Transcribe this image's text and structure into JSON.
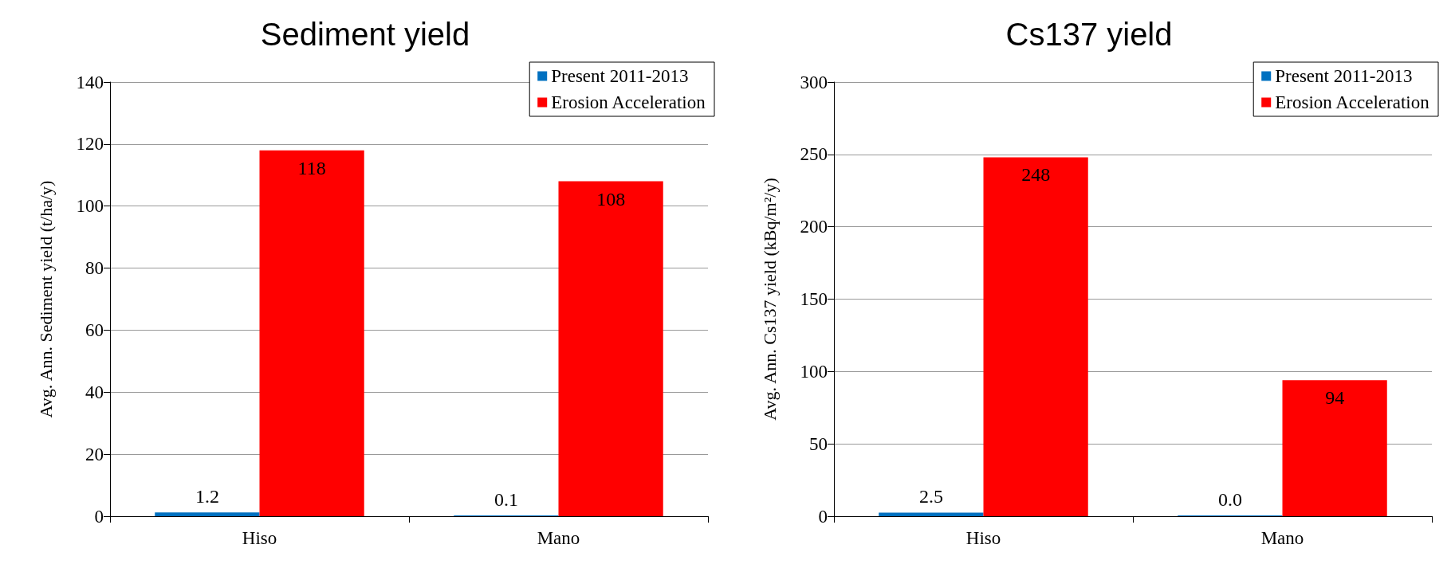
{
  "chart_data": [
    {
      "type": "bar",
      "title": "Sediment yield",
      "ylabel": "Avg. Ann. Sediment yield (t/ha/y)",
      "categories": [
        "Hiso",
        "Mano"
      ],
      "ylim": [
        0,
        140
      ],
      "yticks": [
        0,
        20,
        40,
        60,
        80,
        100,
        120,
        140
      ],
      "grid": "y",
      "legend": "top right",
      "series": [
        {
          "name": "Present 2011-2013",
          "color": "#0070c0",
          "values": [
            1.2,
            0.1
          ],
          "value_labels": [
            "1.2",
            "0.1"
          ]
        },
        {
          "name": "Erosion Acceleration",
          "color": "#ff0000",
          "values": [
            118,
            108
          ],
          "value_labels": [
            "118",
            "108"
          ]
        }
      ]
    },
    {
      "type": "bar",
      "title": "Cs137 yield",
      "ylabel": "Avg. Ann. Cs137 yield (kBq/m²/y)",
      "categories": [
        "Hiso",
        "Mano"
      ],
      "ylim": [
        0,
        300
      ],
      "yticks": [
        0,
        50,
        100,
        150,
        200,
        250,
        300
      ],
      "grid": "y",
      "legend": "top right",
      "series": [
        {
          "name": "Present 2011-2013",
          "color": "#0070c0",
          "values": [
            2.5,
            0.0
          ],
          "value_labels": [
            "2.5",
            "0.0"
          ]
        },
        {
          "name": "Erosion Acceleration",
          "color": "#ff0000",
          "values": [
            248,
            94
          ],
          "value_labels": [
            "248",
            "94"
          ]
        }
      ]
    }
  ]
}
